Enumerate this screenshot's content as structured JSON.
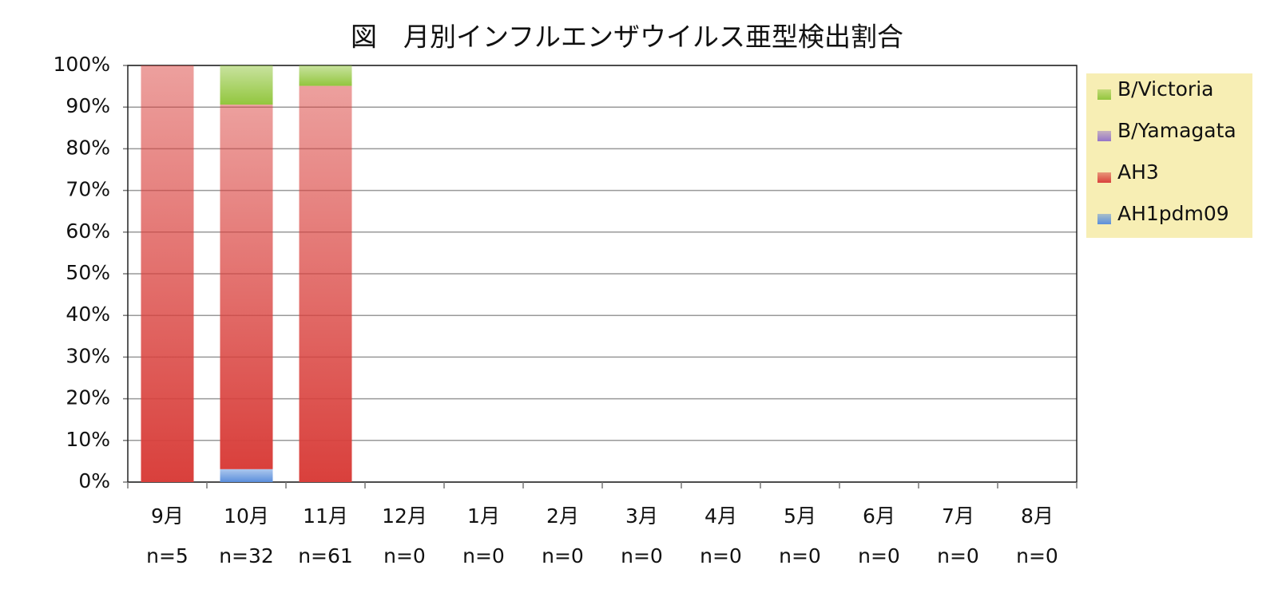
{
  "chart_data": {
    "type": "stacked-bar",
    "title": "図　月別インフルエンザウイルス亜型検出割合",
    "categories": [
      "9月",
      "10月",
      "11月",
      "12月",
      "1月",
      "2月",
      "3月",
      "4月",
      "5月",
      "6月",
      "7月",
      "8月"
    ],
    "category_counts": [
      "n=5",
      "n=32",
      "n=61",
      "n=0",
      "n=0",
      "n=0",
      "n=0",
      "n=0",
      "n=0",
      "n=0",
      "n=0",
      "n=0"
    ],
    "series": [
      {
        "name": "AH1pdm09",
        "color": "#5b8fdc",
        "values": [
          0,
          3.1,
          0,
          0,
          0,
          0,
          0,
          0,
          0,
          0,
          0,
          0
        ]
      },
      {
        "name": "AH3",
        "color": "#d9403c",
        "values": [
          100,
          87.5,
          95.1,
          0,
          0,
          0,
          0,
          0,
          0,
          0,
          0,
          0
        ]
      },
      {
        "name": "B/Yamagata",
        "color": "#9575c8",
        "values": [
          0,
          0,
          0,
          0,
          0,
          0,
          0,
          0,
          0,
          0,
          0,
          0
        ]
      },
      {
        "name": "B/Victoria",
        "color": "#92c63e",
        "values": [
          0,
          9.4,
          4.9,
          0,
          0,
          0,
          0,
          0,
          0,
          0,
          0,
          0
        ]
      }
    ],
    "ylim": [
      0,
      100
    ],
    "yticks": [
      {
        "value": 0,
        "label": "0%"
      },
      {
        "value": 10,
        "label": "10%"
      },
      {
        "value": 20,
        "label": "20%"
      },
      {
        "value": 30,
        "label": "30%"
      },
      {
        "value": 40,
        "label": "40%"
      },
      {
        "value": 50,
        "label": "50%"
      },
      {
        "value": 60,
        "label": "60%"
      },
      {
        "value": 70,
        "label": "70%"
      },
      {
        "value": 80,
        "label": "80%"
      },
      {
        "value": 90,
        "label": "90%"
      },
      {
        "value": 100,
        "label": "100%"
      }
    ],
    "grid": true,
    "legend": "right"
  }
}
